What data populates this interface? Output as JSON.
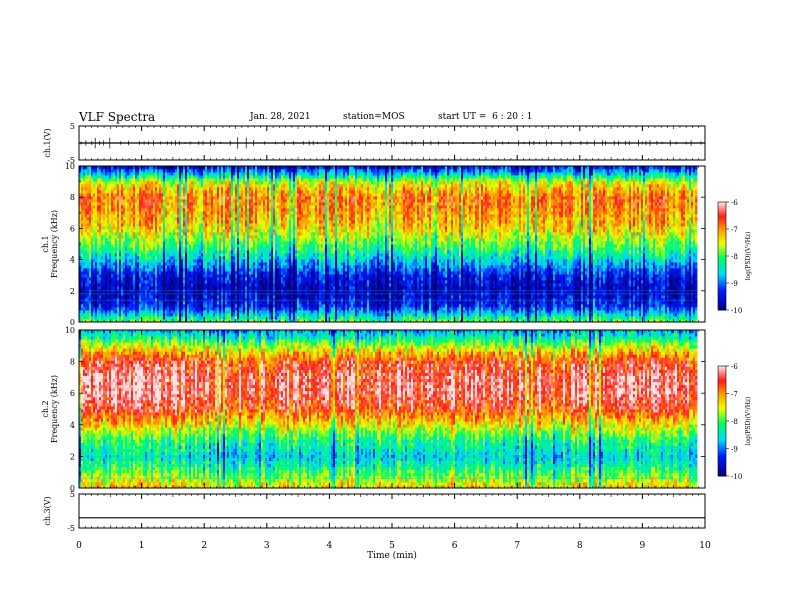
{
  "header": {
    "title": "VLF Spectra",
    "date": "Jan. 28, 2021",
    "station": "station=MOS",
    "start": "start UT =  6 : 20 : 1"
  },
  "colorbar": {
    "label": "log(PSD)(V²/Hz)"
  },
  "chart_data": [
    {
      "type": "line",
      "name": "ch.1 waveform",
      "ylabel": "ch.1(V)",
      "ylim": [
        -5,
        5
      ],
      "yticks": [
        "5",
        "-5"
      ],
      "x_range_min": [
        0,
        10
      ],
      "level_v": 0.0
    },
    {
      "type": "heatmap",
      "name": "ch.1 spectrogram",
      "ylabel": "ch.1 Frequency (kHz)",
      "ylim": [
        0,
        10
      ],
      "yticks": [
        "0",
        "2",
        "4",
        "6",
        "8",
        "10"
      ],
      "x_range_min": [
        0,
        9.85
      ],
      "colorbar_range": [
        -10,
        -6
      ],
      "colorbar_ticks": [
        "-6",
        "-7",
        "-8",
        "-9",
        "-10"
      ],
      "colorbar_label": "log(PSD)(V²/Hz)",
      "profile_khz": [
        0,
        0.5,
        1,
        2,
        3,
        4,
        5,
        6,
        7,
        8,
        9,
        9.5,
        10
      ],
      "profile_log_psd": [
        -7.8,
        -8.6,
        -9.3,
        -9.7,
        -9.4,
        -8.6,
        -7.9,
        -7.3,
        -7.0,
        -6.8,
        -7.5,
        -8.6,
        -9.5
      ]
    },
    {
      "type": "heatmap",
      "name": "ch.2 spectrogram",
      "ylabel": "ch.2 Frequency (kHz)",
      "ylim": [
        0,
        10
      ],
      "yticks": [
        "0",
        "2",
        "4",
        "6",
        "8",
        "10"
      ],
      "x_range_min": [
        0,
        9.85
      ],
      "colorbar_range": [
        -10,
        -6
      ],
      "colorbar_ticks": [
        "-6",
        "-7",
        "-8",
        "-9",
        "-10"
      ],
      "colorbar_label": "log(PSD)(V²/Hz)",
      "profile_khz": [
        0,
        0.5,
        1,
        2,
        3,
        4,
        5,
        6,
        7,
        8,
        9,
        9.5,
        10
      ],
      "profile_log_psd": [
        -7.3,
        -7.6,
        -8.0,
        -8.6,
        -8.2,
        -7.4,
        -6.6,
        -6.3,
        -6.3,
        -6.6,
        -7.6,
        -8.3,
        -8.8
      ]
    },
    {
      "type": "line",
      "name": "ch.3 waveform",
      "ylabel": "ch.3(V)",
      "ylim": [
        -5,
        5
      ],
      "yticks": [
        "5",
        "-5"
      ],
      "xlabel": "Time (min)",
      "xlim": [
        0,
        10
      ],
      "xticks": [
        "0",
        "1",
        "2",
        "3",
        "4",
        "5",
        "6",
        "7",
        "8",
        "9",
        "10"
      ],
      "level_v": -2.0
    }
  ]
}
